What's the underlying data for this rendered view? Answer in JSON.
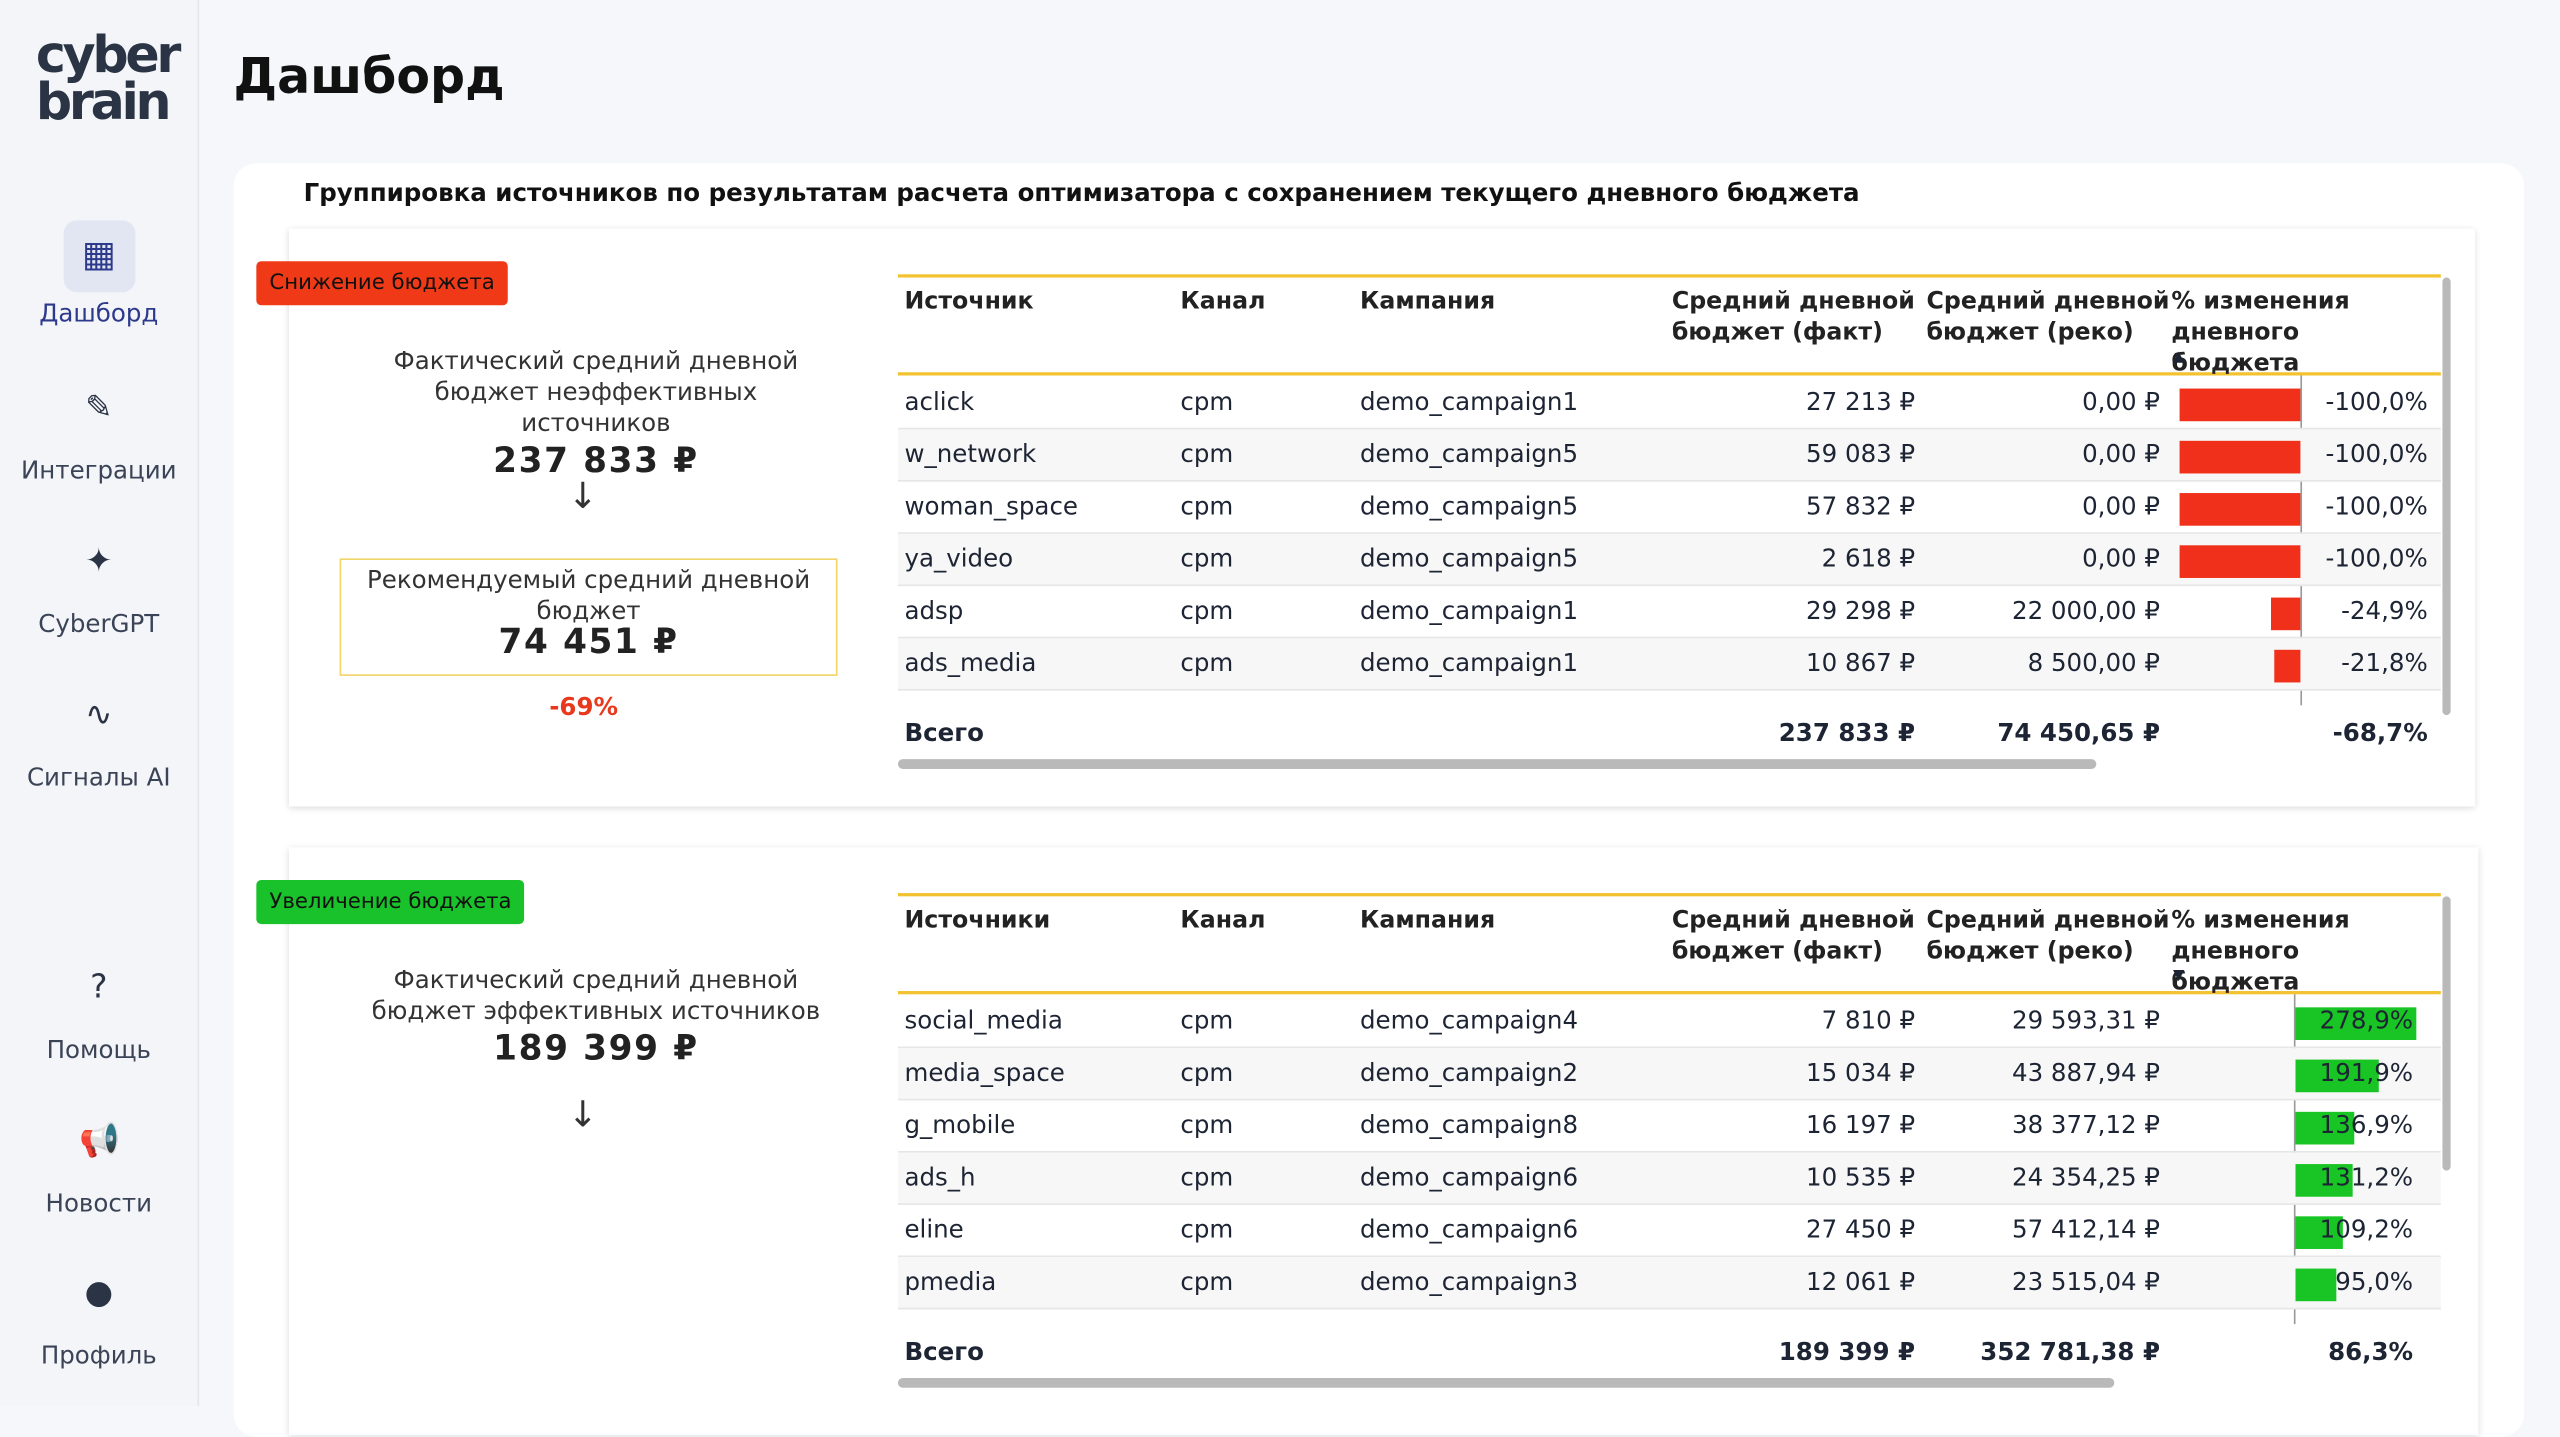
{
  "nav": {
    "logo": [
      "cyber",
      "brain"
    ],
    "items": [
      "Дашборд",
      "Интеграции",
      "CyberGPT",
      "Сигналы AI",
      "Помощь",
      "Новости",
      "Профиль"
    ]
  },
  "header": {
    "title": "Дашборд"
  },
  "section": {
    "title": "Группировка источников по результатам расчета оптимизатора с сохранением текущего дневного бюджета"
  },
  "panels": [
    {
      "badge": "Снижение бюджета",
      "fact_label": "Фактический средний дневной бюджет неэффективных источников",
      "fact_value": "237 833 ₽",
      "rec_label": "Рекомендуемый средний дневной бюджет",
      "rec_value": "74 451 ₽",
      "delta": "-69%",
      "columns": [
        "Источник",
        "Канал",
        "Кампания",
        "Средний дневной бюджет (факт)",
        "Средний дневной бюджет (реко)",
        "% изменения дневного бюджета"
      ],
      "rows": [
        {
          "source": "aclick",
          "channel": "cpm",
          "campaign": "demo_campaign1",
          "fact": "27 213 ₽",
          "reco": "0,00 ₽",
          "change": -100,
          "change_label": "-100,0%"
        },
        {
          "source": "w_network",
          "channel": "cpm",
          "campaign": "demo_campaign5",
          "fact": "59 083 ₽",
          "reco": "0,00 ₽",
          "change": -100,
          "change_label": "-100,0%"
        },
        {
          "source": "woman_space",
          "channel": "cpm",
          "campaign": "demo_campaign5",
          "fact": "57 832 ₽",
          "reco": "0,00 ₽",
          "change": -100,
          "change_label": "-100,0%"
        },
        {
          "source": "ya_video",
          "channel": "cpm",
          "campaign": "demo_campaign5",
          "fact": "2 618 ₽",
          "reco": "0,00 ₽",
          "change": -100,
          "change_label": "-100,0%"
        },
        {
          "source": "adsp",
          "channel": "cpm",
          "campaign": "demo_campaign1",
          "fact": "29 298 ₽",
          "reco": "22 000,00 ₽",
          "change": -24.9,
          "change_label": "-24,9%"
        },
        {
          "source": "ads_media",
          "channel": "cpm",
          "campaign": "demo_campaign1",
          "fact": "10 867 ₽",
          "reco": "8 500,00 ₽",
          "change": -21.8,
          "change_label": "-21,8%"
        }
      ],
      "total": {
        "label": "Всего",
        "fact": "237 833 ₽",
        "reco": "74 450,65 ₽",
        "change": "-68,7%"
      }
    },
    {
      "badge": "Увеличение бюджета",
      "fact_label": "Фактический средний дневной бюджет эффективных источников",
      "fact_value": "189 399 ₽",
      "columns": [
        "Источники",
        "Канал",
        "Кампания",
        "Средний дневной бюджет (факт)",
        "Средний дневной бюджет (реко)",
        "% изменения дневного бюджета"
      ],
      "rows": [
        {
          "source": "social_media",
          "channel": "cpm",
          "campaign": "demo_campaign4",
          "fact": "7 810 ₽",
          "reco": "29 593,31 ₽",
          "change": 278.9,
          "change_label": "278,9%"
        },
        {
          "source": "media_space",
          "channel": "cpm",
          "campaign": "demo_campaign2",
          "fact": "15 034 ₽",
          "reco": "43 887,94 ₽",
          "change": 191.9,
          "change_label": "191,9%"
        },
        {
          "source": "g_mobile",
          "channel": "cpm",
          "campaign": "demo_campaign8",
          "fact": "16 197 ₽",
          "reco": "38 377,12 ₽",
          "change": 136.9,
          "change_label": "136,9%"
        },
        {
          "source": "ads_h",
          "channel": "cpm",
          "campaign": "demo_campaign6",
          "fact": "10 535 ₽",
          "reco": "24 354,25 ₽",
          "change": 131.2,
          "change_label": "131,2%"
        },
        {
          "source": "eline",
          "channel": "cpm",
          "campaign": "demo_campaign6",
          "fact": "27 450 ₽",
          "reco": "57 412,14 ₽",
          "change": 109.2,
          "change_label": "109,2%"
        },
        {
          "source": "pmedia",
          "channel": "cpm",
          "campaign": "demo_campaign3",
          "fact": "12 061 ₽",
          "reco": "23 515,04 ₽",
          "change": 95.0,
          "change_label": "95,0%"
        }
      ],
      "total": {
        "label": "Всего",
        "fact": "189 399 ₽",
        "reco": "352 781,38 ₽",
        "change": "86,3%"
      }
    }
  ]
}
